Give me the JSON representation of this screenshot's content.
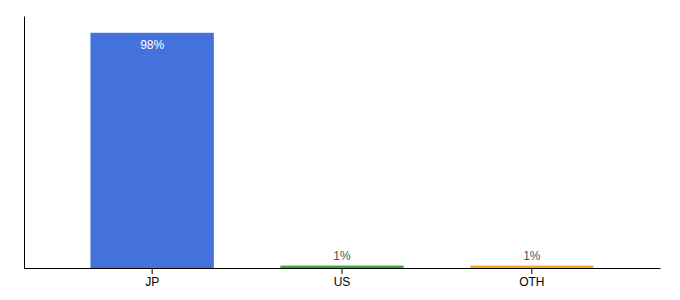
{
  "chart_data": {
    "type": "bar",
    "categories": [
      "JP",
      "US",
      "OTH"
    ],
    "values": [
      98,
      1,
      1
    ],
    "colors": [
      "#4472db",
      "#3aaa35",
      "#f5a623"
    ],
    "value_labels": [
      "98%",
      "1%",
      "1%"
    ],
    "data_labels": true,
    "ylim": [
      0,
      105
    ],
    "tick_labels": "x",
    "grid": false
  }
}
